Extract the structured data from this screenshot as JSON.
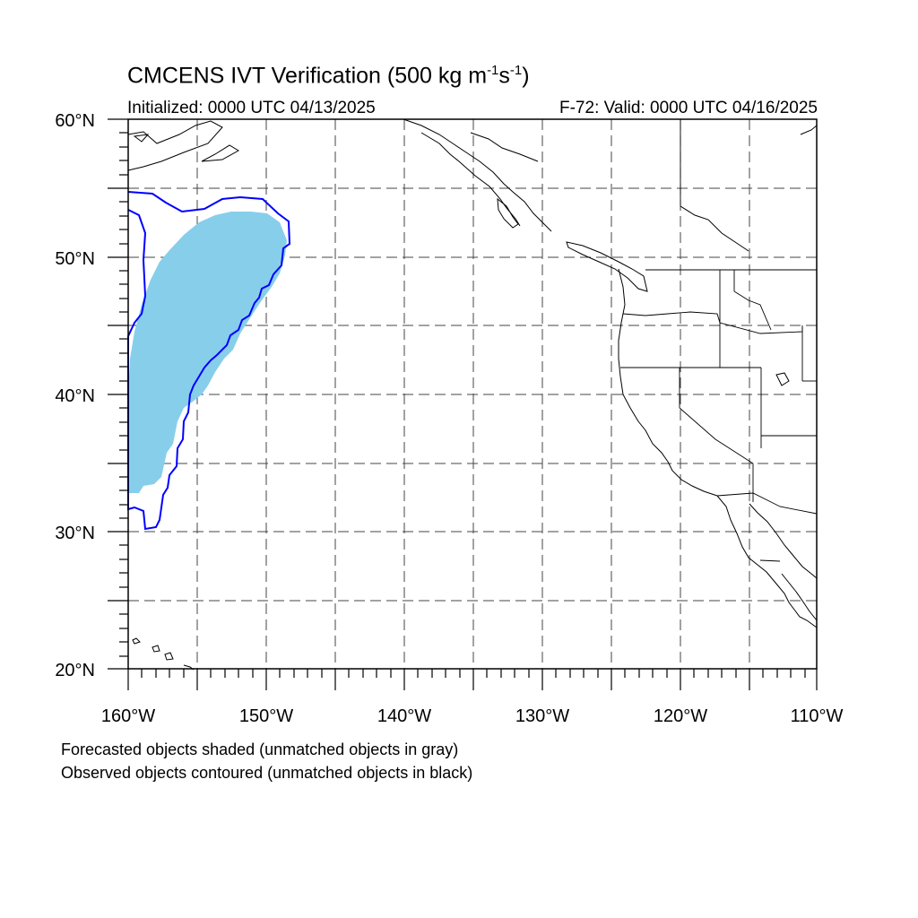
{
  "title": {
    "main": "CMCENS IVT Verification (500 kg m",
    "exp1": "-1",
    "mid": "s",
    "exp2": "-1",
    "end": ")"
  },
  "subtitle": {
    "initialized": "Initialized: 0000 UTC 04/13/2025",
    "valid": "F-72: Valid: 0000 UTC 04/16/2025"
  },
  "map": {
    "lon_range": [
      -160,
      -110
    ],
    "lat_range": [
      20,
      60
    ],
    "lon_labels": [
      "160°W",
      "150°W",
      "140°W",
      "130°W",
      "120°W",
      "110°W"
    ],
    "lat_labels": [
      "20°N",
      "30°N",
      "40°N",
      "50°N",
      "60°N"
    ],
    "grid": "dashed",
    "forecast_fill_color": "#87CEEB",
    "observed_contour_color": "#0000FF"
  },
  "captions": {
    "line1": "Forecasted objects shaded (unmatched objects in gray)",
    "line2": "Observed objects contoured (unmatched objects in black)"
  }
}
